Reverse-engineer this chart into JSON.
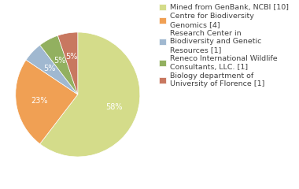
{
  "labels": [
    "Mined from GenBank, NCBI [10]",
    "Centre for Biodiversity\nGenomics [4]",
    "Research Center in\nBiodiversity and Genetic\nResources [1]",
    "Reneco International Wildlife\nConsultants, LLC. [1]",
    "Biology department of\nUniversity of Florence [1]"
  ],
  "values": [
    58,
    23,
    5,
    5,
    5
  ],
  "colors": [
    "#d4dc8a",
    "#f0a054",
    "#a0b8d0",
    "#92b060",
    "#c87860"
  ],
  "pct_labels": [
    "58%",
    "23%",
    "5%",
    "5%",
    "5%"
  ],
  "startangle": 90,
  "background_color": "#ffffff",
  "text_color": "#404040",
  "fontsize": 7.0,
  "legend_fontsize": 6.8
}
